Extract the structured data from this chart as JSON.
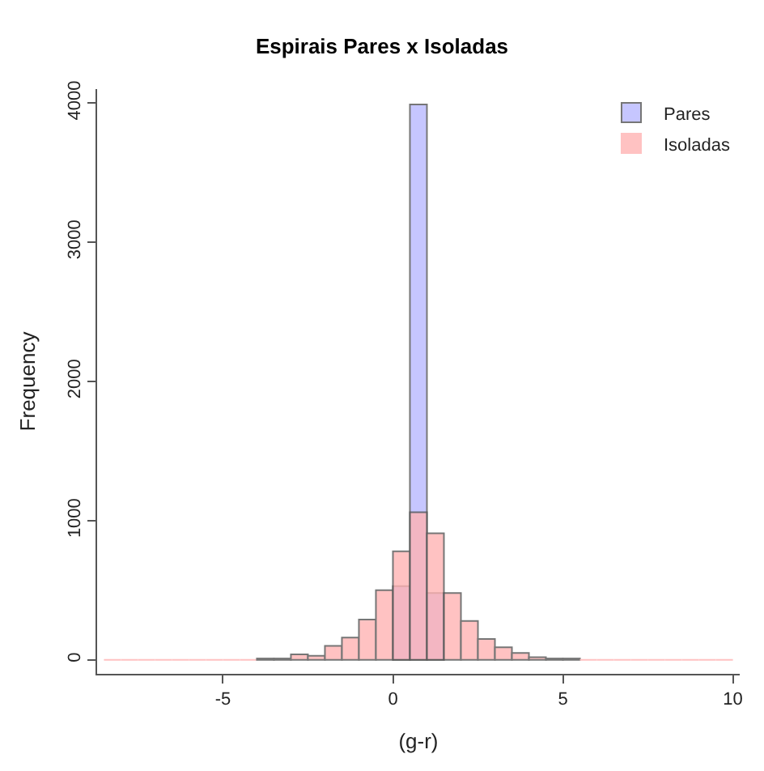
{
  "chart_data": {
    "type": "histogram",
    "title": "Espirais Pares x Isoladas",
    "xlabel": "(g-r)",
    "ylabel": "Frequency",
    "bins": [
      -8.5,
      -8,
      -7.5,
      -7,
      -6.5,
      -6,
      -5.5,
      -5,
      -4.5,
      -4,
      -3.5,
      -3,
      -2.5,
      -2,
      -1.5,
      -1,
      -0.5,
      0,
      0.5,
      1,
      1.5,
      2,
      2.5,
      3,
      3.5,
      4,
      4.5,
      5,
      5.5,
      6,
      6.5,
      7,
      7.5,
      8,
      8.5,
      9,
      9.5,
      10
    ],
    "series": [
      {
        "name": "Pares",
        "color": "#b8b8ff",
        "values": [
          null,
          null,
          null,
          null,
          null,
          null,
          null,
          null,
          null,
          null,
          null,
          null,
          null,
          null,
          null,
          null,
          null,
          530,
          3990,
          480,
          null,
          null,
          null,
          null,
          null,
          null,
          null,
          null,
          null,
          null,
          null,
          null,
          null,
          null,
          null,
          null,
          null
        ]
      },
      {
        "name": "Isoladas",
        "color": "#ffb3b3",
        "values": [
          0,
          0,
          0,
          0,
          0,
          0,
          0,
          0,
          0,
          10,
          10,
          40,
          30,
          100,
          160,
          290,
          500,
          780,
          1060,
          910,
          480,
          280,
          150,
          90,
          50,
          20,
          10,
          10,
          0,
          0,
          0,
          0,
          0,
          0,
          0,
          0,
          0
        ]
      }
    ],
    "xlim": [
      -8.7,
      10.2
    ],
    "xticks": [
      -5,
      0,
      5,
      10
    ],
    "ylim": [
      -100,
      4100
    ],
    "yticks": [
      0,
      1000,
      2000,
      3000,
      4000
    ],
    "grid": false,
    "legend": "top right"
  }
}
